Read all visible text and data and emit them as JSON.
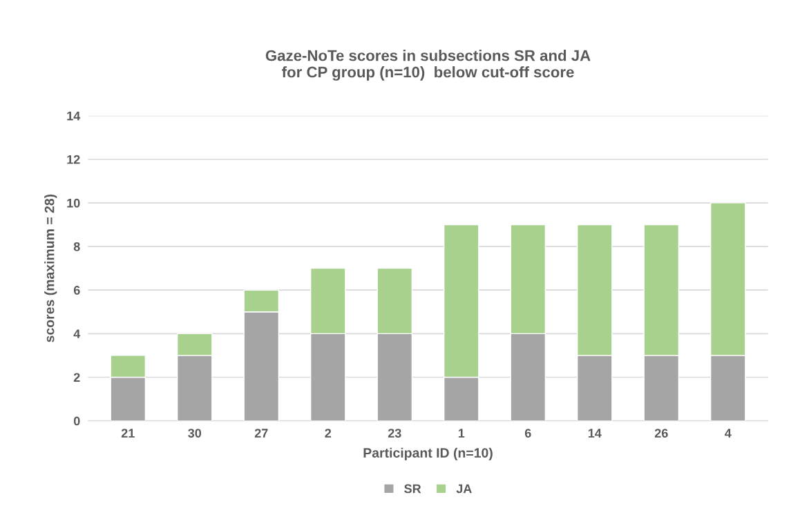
{
  "chart_data": {
    "type": "bar",
    "stacked": true,
    "title": "Gaze-NoTe scores in subsections SR and JA\nfor CP group (n=10)  below cut-off score",
    "xlabel": "Participant ID (n=10)",
    "ylabel": "scores (maximum = 28)",
    "categories": [
      "21",
      "30",
      "27",
      "2",
      "23",
      "1",
      "6",
      "14",
      "26",
      "4"
    ],
    "series": [
      {
        "name": "SR",
        "color": "#a5a5a5",
        "values": [
          2,
          3,
          5,
          4,
          4,
          2,
          4,
          3,
          3,
          3
        ]
      },
      {
        "name": "JA",
        "color": "#a9d18e",
        "values": [
          1,
          1,
          1,
          3,
          3,
          7,
          5,
          6,
          6,
          7
        ]
      }
    ],
    "ylim": [
      0,
      14
    ],
    "yticks": [
      0,
      2,
      4,
      6,
      8,
      10,
      12,
      14
    ],
    "grid": "y",
    "legend": "bottom"
  }
}
